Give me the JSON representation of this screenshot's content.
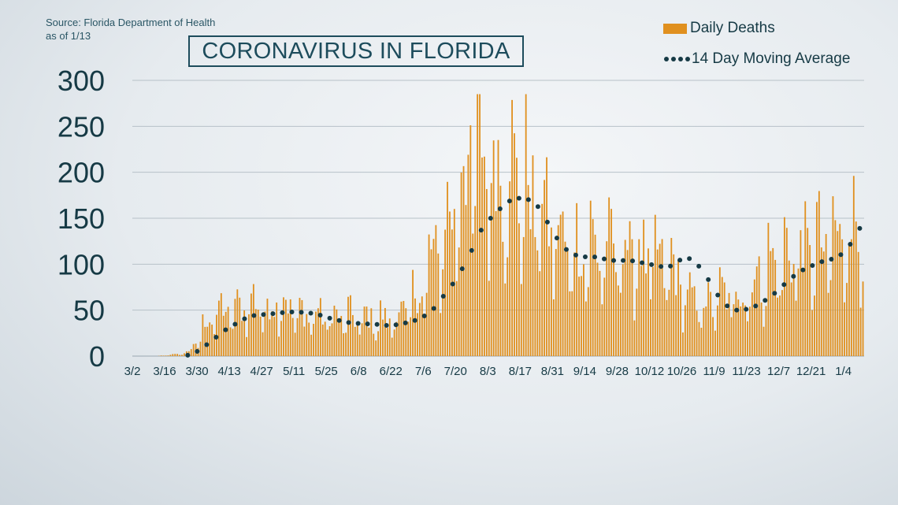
{
  "source": {
    "line1": "Source: Florida Department of Health",
    "line2": "as of 1/13"
  },
  "title": "CORONAVIRUS IN FLORIDA",
  "legend": {
    "bars_label": "Daily Deaths",
    "line_label": "14 Day Moving Average"
  },
  "colors": {
    "bar": "#e0901f",
    "dots": "#163a45",
    "text": "#163a45",
    "grid": "#b7c1c8"
  },
  "chart_data": {
    "type": "bar",
    "start_date": "3/2",
    "days": 317,
    "ylim": [
      0,
      300
    ],
    "yticks": [
      0,
      50,
      100,
      150,
      200,
      250,
      300
    ],
    "xticks": [
      "3/2",
      "3/16",
      "3/30",
      "4/13",
      "4/27",
      "5/11",
      "5/25",
      "6/8",
      "6/22",
      "7/6",
      "7/20",
      "8/3",
      "8/17",
      "8/31",
      "9/14",
      "9/28",
      "10/12",
      "10/26",
      "11/9",
      "11/23",
      "12/7",
      "12/21",
      "1/4"
    ],
    "grid": true,
    "legend_position": "top-right",
    "series": [
      {
        "name": "Daily Deaths",
        "type": "bar",
        "anchors": [
          [
            0,
            0
          ],
          [
            10,
            0
          ],
          [
            14,
            1
          ],
          [
            20,
            2
          ],
          [
            24,
            5
          ],
          [
            27,
            12
          ],
          [
            29,
            22
          ],
          [
            31,
            33
          ],
          [
            33,
            40
          ],
          [
            36,
            45
          ],
          [
            40,
            48
          ],
          [
            44,
            45
          ],
          [
            48,
            52
          ],
          [
            52,
            55
          ],
          [
            56,
            50
          ],
          [
            59,
            48
          ],
          [
            62,
            58
          ],
          [
            64,
            60
          ],
          [
            66,
            52
          ],
          [
            70,
            45
          ],
          [
            74,
            42
          ],
          [
            80,
            42
          ],
          [
            86,
            40
          ],
          [
            92,
            40
          ],
          [
            98,
            38
          ],
          [
            104,
            38
          ],
          [
            110,
            36
          ],
          [
            114,
            42
          ],
          [
            118,
            48
          ],
          [
            122,
            58
          ],
          [
            126,
            75
          ],
          [
            130,
            100
          ],
          [
            134,
            120
          ],
          [
            138,
            150
          ],
          [
            142,
            180
          ],
          [
            146,
            210
          ],
          [
            150,
            220
          ],
          [
            154,
            200
          ],
          [
            158,
            190
          ],
          [
            162,
            195
          ],
          [
            166,
            180
          ],
          [
            170,
            175
          ],
          [
            174,
            160
          ],
          [
            178,
            145
          ],
          [
            182,
            130
          ],
          [
            186,
            118
          ],
          [
            190,
            112
          ],
          [
            194,
            112
          ],
          [
            198,
            110
          ],
          [
            202,
            108
          ],
          [
            206,
            106
          ],
          [
            210,
            110
          ],
          [
            214,
            108
          ],
          [
            218,
            104
          ],
          [
            222,
            100
          ],
          [
            226,
            95
          ],
          [
            230,
            95
          ],
          [
            234,
            85
          ],
          [
            238,
            70
          ],
          [
            242,
            56
          ],
          [
            246,
            52
          ],
          [
            250,
            55
          ],
          [
            254,
            60
          ],
          [
            258,
            62
          ],
          [
            262,
            65
          ],
          [
            266,
            70
          ],
          [
            270,
            78
          ],
          [
            274,
            88
          ],
          [
            278,
            95
          ],
          [
            282,
            102
          ],
          [
            286,
            105
          ],
          [
            290,
            108
          ],
          [
            294,
            112
          ],
          [
            298,
            110
          ],
          [
            302,
            112
          ],
          [
            306,
            120
          ],
          [
            310,
            130
          ],
          [
            316,
            150
          ]
        ],
        "peak_labels_note": ""
      },
      {
        "name": "14 Day Moving Average",
        "type": "line",
        "anchors": [
          [
            0,
            0
          ],
          [
            20,
            0
          ],
          [
            24,
            1
          ],
          [
            28,
            5
          ],
          [
            32,
            12
          ],
          [
            36,
            20
          ],
          [
            40,
            28
          ],
          [
            44,
            34
          ],
          [
            48,
            40
          ],
          [
            52,
            44
          ],
          [
            56,
            45
          ],
          [
            60,
            46
          ],
          [
            64,
            47
          ],
          [
            68,
            48
          ],
          [
            72,
            48
          ],
          [
            76,
            47
          ],
          [
            80,
            46
          ],
          [
            84,
            42
          ],
          [
            88,
            40
          ],
          [
            92,
            37
          ],
          [
            96,
            36
          ],
          [
            100,
            35
          ],
          [
            104,
            35
          ],
          [
            108,
            34
          ],
          [
            112,
            33
          ],
          [
            116,
            35
          ],
          [
            120,
            37
          ],
          [
            124,
            40
          ],
          [
            128,
            46
          ],
          [
            132,
            55
          ],
          [
            136,
            70
          ],
          [
            140,
            82
          ],
          [
            144,
            100
          ],
          [
            148,
            120
          ],
          [
            152,
            142
          ],
          [
            156,
            152
          ],
          [
            160,
            162
          ],
          [
            164,
            170
          ],
          [
            168,
            172
          ],
          [
            172,
            170
          ],
          [
            176,
            162
          ],
          [
            180,
            145
          ],
          [
            184,
            128
          ],
          [
            188,
            116
          ],
          [
            192,
            110
          ],
          [
            196,
            108
          ],
          [
            200,
            108
          ],
          [
            204,
            106
          ],
          [
            208,
            104
          ],
          [
            212,
            104
          ],
          [
            216,
            104
          ],
          [
            220,
            102
          ],
          [
            224,
            100
          ],
          [
            228,
            98
          ],
          [
            232,
            96
          ],
          [
            236,
            103
          ],
          [
            240,
            108
          ],
          [
            244,
            102
          ],
          [
            248,
            90
          ],
          [
            252,
            72
          ],
          [
            256,
            58
          ],
          [
            260,
            50
          ],
          [
            264,
            50
          ],
          [
            268,
            52
          ],
          [
            272,
            57
          ],
          [
            276,
            64
          ],
          [
            280,
            72
          ],
          [
            284,
            82
          ],
          [
            288,
            90
          ],
          [
            292,
            96
          ],
          [
            296,
            100
          ],
          [
            300,
            104
          ],
          [
            304,
            106
          ],
          [
            308,
            112
          ],
          [
            312,
            125
          ],
          [
            316,
            143
          ]
        ]
      }
    ]
  }
}
